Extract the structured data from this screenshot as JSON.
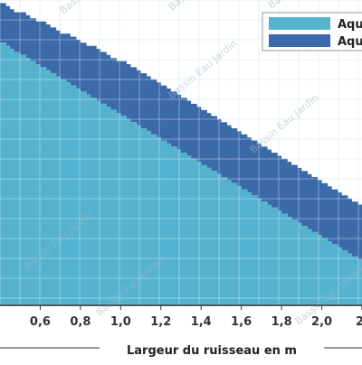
{
  "colors": {
    "series1": "#55b3cf",
    "series2": "#3c6aa9",
    "grid": "#d6e8f3",
    "axis": "#333333"
  },
  "watermark": "Bassin Eau Jardin",
  "chart_data": {
    "type": "area",
    "title": "",
    "xlabel": "Largeur du ruisseau en m",
    "ylabel": "",
    "xlim": [
      0.4,
      2.2
    ],
    "ylim": [
      0,
      1
    ],
    "xticks": [
      "0,6",
      "0,8",
      "1,0",
      "1,2",
      "1,4",
      "1,6",
      "1,8",
      "2,0",
      "2,"
    ],
    "xtick_values": [
      0.6,
      0.8,
      1.0,
      1.2,
      1.4,
      1.6,
      1.8,
      2.0,
      2.2
    ],
    "legend": {
      "position": "top-right",
      "entries": [
        "Aqu",
        "Aqu"
      ]
    },
    "grid": true,
    "series": [
      {
        "name": "Aqu",
        "color": "#55b3cf",
        "x": [
          0.4,
          0.43,
          0.45,
          0.47,
          0.5,
          0.53,
          0.55,
          0.58,
          0.6,
          0.63,
          0.65,
          0.68,
          0.7,
          0.73,
          0.75,
          0.78,
          0.8,
          0.83,
          0.85,
          0.88,
          0.9,
          0.93,
          0.95,
          0.98,
          1.0,
          1.03,
          1.05,
          1.08,
          1.1,
          1.13,
          1.15,
          1.18,
          1.2,
          1.23,
          1.25,
          1.28,
          1.3,
          1.33,
          1.35,
          1.38,
          1.4,
          1.43,
          1.45,
          1.48,
          1.5,
          1.53,
          1.55,
          1.58,
          1.6,
          1.63,
          1.65,
          1.68,
          1.7,
          1.73,
          1.75,
          1.78,
          1.8,
          1.83,
          1.85,
          1.88,
          1.9,
          1.93,
          1.95,
          1.98,
          2.0,
          2.03,
          2.05,
          2.08,
          2.1,
          2.13,
          2.15,
          2.18,
          2.2
        ],
        "values": [
          0.86,
          0.85,
          0.84,
          0.83,
          0.82,
          0.81,
          0.8,
          0.79,
          0.78,
          0.77,
          0.76,
          0.75,
          0.74,
          0.73,
          0.72,
          0.71,
          0.7,
          0.69,
          0.68,
          0.67,
          0.66,
          0.65,
          0.64,
          0.63,
          0.62,
          0.61,
          0.6,
          0.59,
          0.58,
          0.57,
          0.56,
          0.55,
          0.54,
          0.53,
          0.52,
          0.51,
          0.5,
          0.49,
          0.48,
          0.47,
          0.46,
          0.45,
          0.44,
          0.43,
          0.42,
          0.41,
          0.4,
          0.39,
          0.38,
          0.37,
          0.36,
          0.35,
          0.34,
          0.33,
          0.32,
          0.31,
          0.3,
          0.29,
          0.28,
          0.27,
          0.26,
          0.25,
          0.24,
          0.23,
          0.22,
          0.21,
          0.2,
          0.19,
          0.18,
          0.17,
          0.16,
          0.15,
          0.14
        ]
      },
      {
        "name": "Aqu",
        "color": "#3c6aa9",
        "x": [
          0.4,
          0.43,
          0.45,
          0.47,
          0.5,
          0.53,
          0.55,
          0.58,
          0.6,
          0.63,
          0.65,
          0.68,
          0.7,
          0.73,
          0.75,
          0.78,
          0.8,
          0.83,
          0.85,
          0.88,
          0.9,
          0.93,
          0.95,
          0.98,
          1.0,
          1.03,
          1.05,
          1.08,
          1.1,
          1.13,
          1.15,
          1.18,
          1.2,
          1.23,
          1.25,
          1.28,
          1.3,
          1.33,
          1.35,
          1.38,
          1.4,
          1.43,
          1.45,
          1.48,
          1.5,
          1.53,
          1.55,
          1.58,
          1.6,
          1.63,
          1.65,
          1.68,
          1.7,
          1.73,
          1.75,
          1.78,
          1.8,
          1.83,
          1.85,
          1.88,
          1.9,
          1.93,
          1.95,
          1.98,
          2.0,
          2.03,
          2.05,
          2.08,
          2.1,
          2.13,
          2.15,
          2.18,
          2.2
        ],
        "values": [
          0.13,
          0.13,
          0.13,
          0.13,
          0.14,
          0.14,
          0.14,
          0.14,
          0.15,
          0.15,
          0.15,
          0.15,
          0.15,
          0.16,
          0.16,
          0.16,
          0.16,
          0.16,
          0.17,
          0.17,
          0.17,
          0.17,
          0.17,
          0.17,
          0.18,
          0.18,
          0.18,
          0.18,
          0.18,
          0.18,
          0.18,
          0.18,
          0.18,
          0.18,
          0.18,
          0.18,
          0.18,
          0.18,
          0.18,
          0.18,
          0.18,
          0.18,
          0.18,
          0.18,
          0.18,
          0.18,
          0.18,
          0.18,
          0.18,
          0.18,
          0.18,
          0.18,
          0.18,
          0.18,
          0.18,
          0.18,
          0.18,
          0.18,
          0.18,
          0.18,
          0.18,
          0.18,
          0.18,
          0.18,
          0.18,
          0.18,
          0.18,
          0.18,
          0.18,
          0.18,
          0.18,
          0.18,
          0.18
        ]
      }
    ]
  }
}
